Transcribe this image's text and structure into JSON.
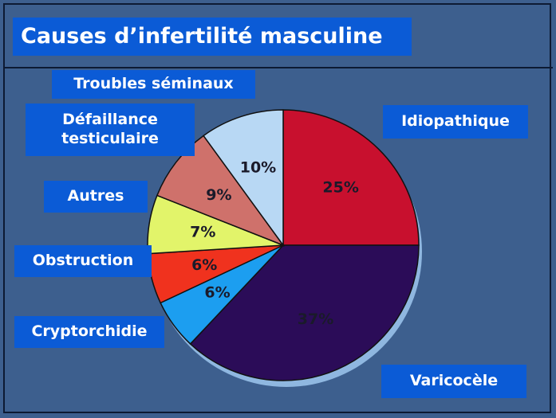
{
  "chart_data": {
    "type": "pie",
    "title": "Causes d’infertilité masculine",
    "categories": [
      "Idiopathique",
      "Varicocèle",
      "Cryptorchidie",
      "Obstruction",
      "Autres",
      "Défaillance testiculaire",
      "Troubles séminaux"
    ],
    "values": [
      25,
      37,
      6,
      6,
      7,
      9,
      10
    ],
    "value_labels": [
      "25%",
      "37%",
      "6%",
      "6%",
      "7%",
      "9%",
      "10%"
    ],
    "colors": [
      "#c8102e",
      "#2b0c58",
      "#1c9ef0",
      "#f0321e",
      "#e2f46a",
      "#cf716b",
      "#b8d8f4"
    ]
  }
}
